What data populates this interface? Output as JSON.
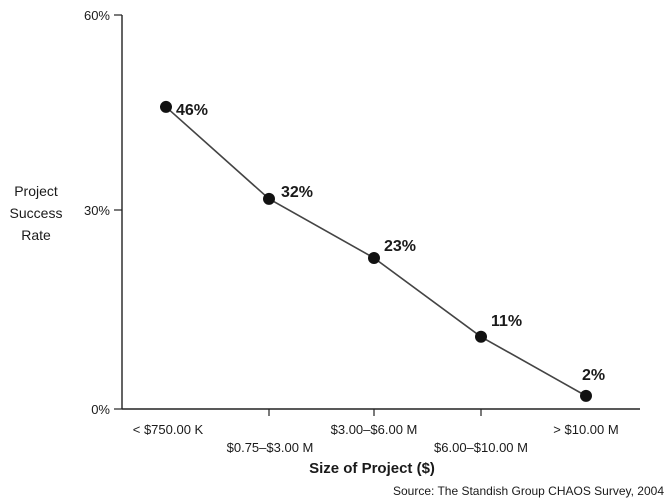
{
  "chart_data": {
    "type": "line",
    "categories": [
      "< $750.00 K",
      "$0.75–$3.00 M",
      "$3.00–$6.00 M",
      "$6.00–$10.00 M",
      "> $10.00 M"
    ],
    "series": [
      {
        "values": [
          46,
          32,
          23,
          11,
          2
        ]
      }
    ],
    "data_labels": [
      "46%",
      "32%",
      "23%",
      "11%",
      "2%"
    ],
    "xlabel": "Size of Project ($)",
    "ylabel": [
      "Project",
      "Success",
      "Rate"
    ],
    "yticks": [
      "0%",
      "30%",
      "60%"
    ],
    "ylim": [
      0,
      60
    ],
    "grid": false,
    "legend": "none",
    "source": "Source: The Standish Group CHAOS Survey, 2004",
    "colors": {
      "line": "#444444",
      "marker": "#111111",
      "axis": "#222222"
    }
  }
}
